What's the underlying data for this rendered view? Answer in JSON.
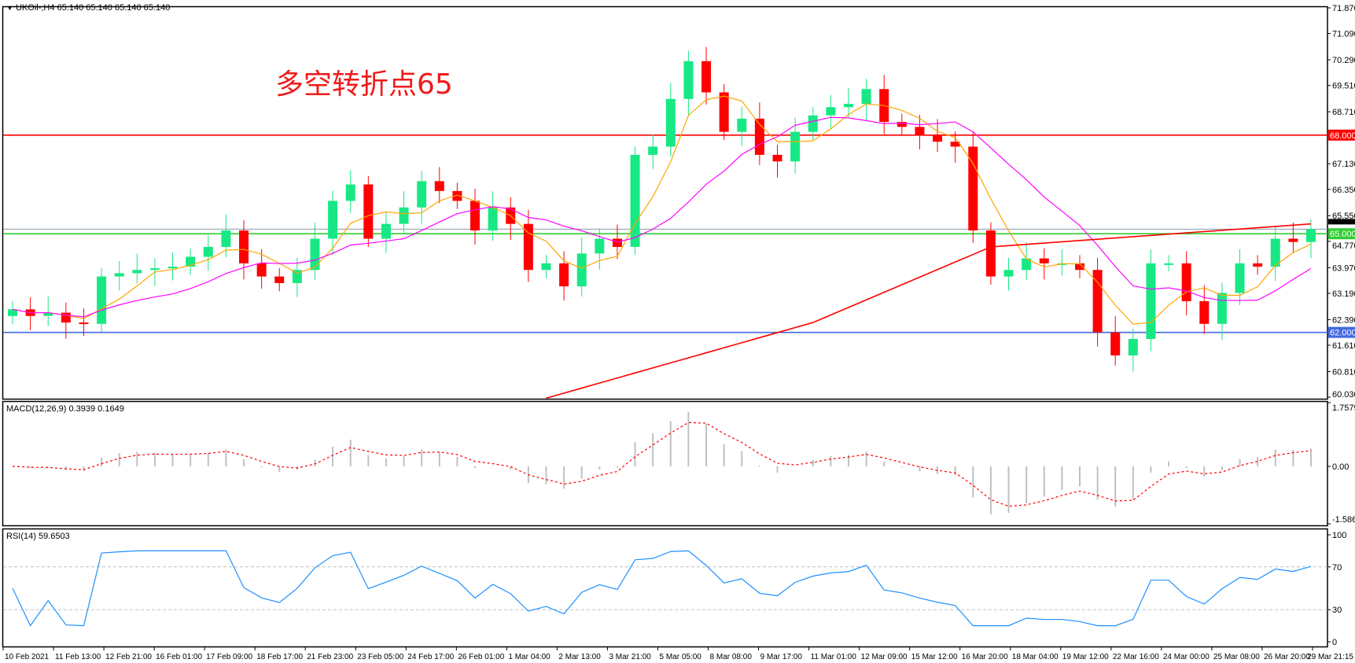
{
  "header": {
    "symbol": "UKOil-,H4",
    "ohlc": "65.140 65.140 65.140 65.140"
  },
  "annotation": "多空转折点65",
  "colors": {
    "up": "#17e884",
    "down": "#ff0000",
    "ma_fast": "#ffa500",
    "ma_mid": "#ff00ff",
    "ma_long": "#ff0000",
    "line68": "#ff0000",
    "line65": "#32cd32",
    "line62": "#4169e1",
    "rsi": "#1e90ff",
    "macd_hist": "#c0c0c0",
    "macd_signal": "#ff0000"
  },
  "chart_data": [
    {
      "type": "candlestick",
      "symbol": "UKOil-",
      "timeframe": "H4",
      "ylim": [
        60.03,
        71.87
      ],
      "y_ticks": [
        "71.870",
        "71.090",
        "70.290",
        "69.510",
        "68.710",
        "67.130",
        "66.350",
        "65.550",
        "64.770",
        "63.970",
        "63.190",
        "62.390",
        "61.610",
        "60.810",
        "60.030"
      ],
      "closes": [
        62.7,
        62.5,
        62.6,
        62.3,
        62.26,
        63.7,
        63.8,
        63.9,
        63.95,
        64.0,
        64.3,
        64.6,
        65.1,
        64.1,
        63.7,
        63.5,
        63.9,
        64.85,
        66.0,
        66.5,
        64.85,
        65.3,
        65.8,
        66.6,
        66.3,
        66.0,
        65.1,
        65.8,
        65.3,
        63.9,
        64.1,
        63.4,
        64.4,
        64.85,
        64.6,
        67.4,
        67.65,
        69.1,
        70.25,
        69.3,
        68.1,
        68.5,
        67.4,
        67.2,
        68.1,
        68.6,
        68.85,
        68.95,
        69.4,
        68.4,
        68.25,
        68.0,
        67.8,
        67.65,
        65.1,
        63.7,
        63.9,
        64.25,
        64.1,
        64.1,
        63.9,
        62.0,
        61.3,
        61.8,
        64.1,
        64.1,
        62.95,
        62.26,
        63.2,
        64.1,
        64.0,
        64.85,
        64.75,
        65.14
      ],
      "ma_long_points": [
        [
          30,
          60.0
        ],
        [
          45,
          62.3
        ],
        [
          55,
          64.6
        ],
        [
          73,
          65.3
        ]
      ],
      "horizontal_lines": [
        {
          "value": 68.0,
          "label": "68.000",
          "color": "#ff0000"
        },
        {
          "value": 65.0,
          "label": "65.000",
          "color": "#32cd32"
        },
        {
          "value": 62.0,
          "label": "62.000",
          "color": "#4169e1"
        }
      ],
      "current_price": {
        "value": 65.14,
        "label": "65.140"
      },
      "x_ticks": [
        "10 Feb 2021",
        "11 Feb 13:00",
        "12 Feb 21:00",
        "16 Feb 01:00",
        "17 Feb 09:00",
        "18 Feb 17:00",
        "21 Feb 23:00",
        "23 Feb 05:00",
        "24 Feb 17:00",
        "26 Feb 01:00",
        "1 Mar 04:00",
        "2 Mar 13:00",
        "3 Mar 21:00",
        "5 Mar 05:00",
        "8 Mar 08:00",
        "9 Mar 17:00",
        "11 Mar 01:00",
        "12 Mar 09:00",
        "15 Mar 12:00",
        "16 Mar 20:00",
        "18 Mar 04:00",
        "19 Mar 12:00",
        "22 Mar 16:00",
        "24 Mar 00:00",
        "25 Mar 08:00",
        "26 Mar 20:00",
        "29 Mar 21:15"
      ]
    },
    {
      "type": "macd",
      "label": "MACD(12,26,9) 0.3939 0.1649",
      "ylim": [
        -1.5867,
        1.7579
      ],
      "y_ticks": [
        "1.7579",
        "0.00",
        "-1.5867"
      ]
    },
    {
      "type": "rsi",
      "label": "RSI(14) 59.6503",
      "ylim": [
        0,
        100
      ],
      "levels": [
        70,
        30
      ],
      "y_ticks": [
        "100",
        "70",
        "30",
        "0"
      ]
    }
  ]
}
